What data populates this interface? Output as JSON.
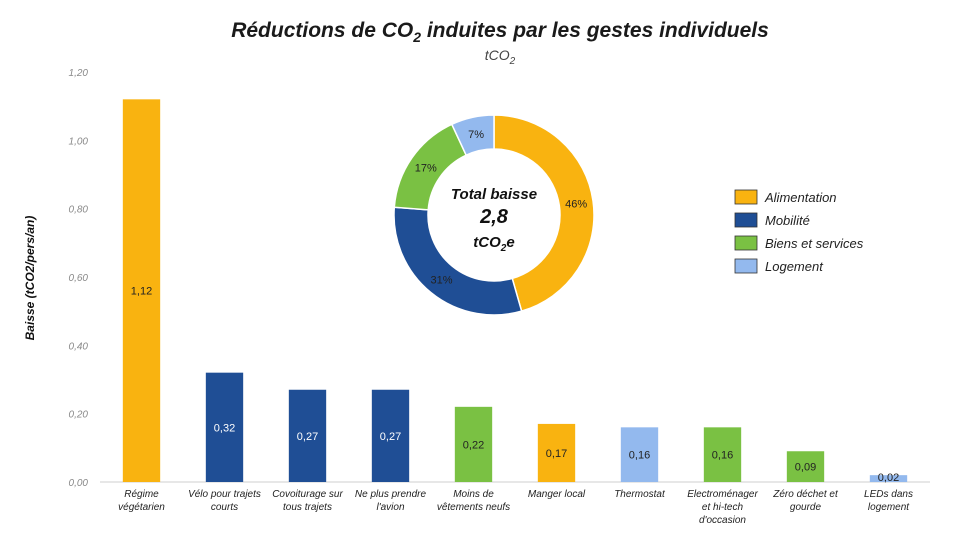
{
  "title": {
    "main_before": "Réductions de CO",
    "main_sub": "2",
    "main_after": " induites par les gestes individuels",
    "unit_before": "tCO",
    "unit_sub": "2"
  },
  "colors": {
    "Alimentation": "#f9b310",
    "Mobilité": "#1f4e95",
    "Biens et services": "#7ac143",
    "Logement": "#93b9ee"
  },
  "chart_data": [
    {
      "type": "bar",
      "ylabel": "Baisse (tCO2/pers/an)",
      "ylim": [
        0,
        1.2
      ],
      "yticks": [
        0,
        0.2,
        0.4,
        0.6,
        0.8,
        1.0,
        1.2
      ],
      "ytick_labels": [
        "0,00",
        "0,20",
        "0,40",
        "0,60",
        "0,80",
        "1,00",
        "1,20"
      ],
      "grid": false,
      "categories": [
        [
          "Régime",
          "végétarien"
        ],
        [
          "Vélo pour trajets",
          "courts"
        ],
        [
          "Covoiturage sur",
          "tous trajets"
        ],
        [
          "Ne plus prendre",
          "l'avion"
        ],
        [
          "Moins de",
          "vêtements neufs"
        ],
        [
          "Manger local"
        ],
        [
          "Thermostat"
        ],
        [
          "Electroménager",
          "et hi-tech",
          "d'occasion"
        ],
        [
          "Zéro déchet et",
          "gourde"
        ],
        [
          "LEDs dans",
          "logement"
        ]
      ],
      "values": [
        1.12,
        0.32,
        0.27,
        0.27,
        0.22,
        0.17,
        0.16,
        0.16,
        0.09,
        0.02
      ],
      "value_labels": [
        "1,12",
        "0,32",
        "0,27",
        "0,27",
        "0,22",
        "0,17",
        "0,16",
        "0,16",
        "0,09",
        "0,02"
      ],
      "groups": [
        "Alimentation",
        "Mobilité",
        "Mobilité",
        "Mobilité",
        "Biens et services",
        "Alimentation",
        "Logement",
        "Biens et services",
        "Biens et services",
        "Logement"
      ],
      "legend": {
        "position": "right",
        "entries": [
          "Alimentation",
          "Mobilité",
          "Biens et services",
          "Logement"
        ]
      }
    },
    {
      "type": "pie",
      "donut": true,
      "labels": [
        "Alimentation",
        "Mobilité",
        "Biens et services",
        "Logement"
      ],
      "values": [
        46,
        31,
        17,
        7
      ],
      "value_labels": [
        "46%",
        "31%",
        "17%",
        "7%"
      ],
      "center_text": {
        "line1": "Total baisse",
        "line2": "2,8",
        "line3_before": "tCO",
        "line3_sub": "2",
        "line3_after": "e"
      }
    }
  ]
}
